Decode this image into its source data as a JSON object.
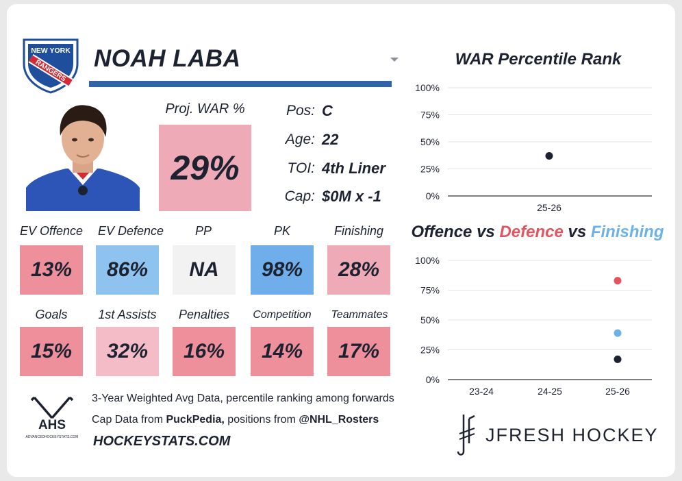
{
  "player": {
    "team_logo_text_top": "NEW YORK",
    "team_logo_text_bottom": "RANGERS",
    "name": "NOAH LABA",
    "proj_war_label": "Proj. WAR %",
    "proj_war_value": "29%",
    "info": [
      {
        "key": "Pos:",
        "value": "C"
      },
      {
        "key": "Age:",
        "value": "22"
      },
      {
        "key": "TOI:",
        "value": "4th Liner"
      },
      {
        "key": "Cap:",
        "value": "$0M x -1"
      }
    ]
  },
  "stats_row1": [
    {
      "label": "EV Offence",
      "value": "13%",
      "color": "#ee8f9c"
    },
    {
      "label": "EV Defence",
      "value": "86%",
      "color": "#8ec2ef"
    },
    {
      "label": "PP",
      "value": "NA",
      "color": "#f2f2f2"
    },
    {
      "label": "PK",
      "value": "98%",
      "color": "#6faeea"
    },
    {
      "label": "Finishing",
      "value": "28%",
      "color": "#efaab7"
    }
  ],
  "stats_row2": [
    {
      "label": "Goals",
      "value": "15%",
      "color": "#ee8f9c"
    },
    {
      "label": "1st Assists",
      "value": "32%",
      "color": "#f3bcc6"
    },
    {
      "label": "Penalties",
      "value": "16%",
      "color": "#ee8f9c"
    },
    {
      "label": "Competition",
      "value": "14%",
      "color": "#ee8f9c"
    },
    {
      "label": "Teammates",
      "value": "17%",
      "color": "#ee8f9c"
    }
  ],
  "footer": {
    "ahs_text": "AHS",
    "ahs_sub": "ADVANCEDHOCKEYSTATS.COM",
    "line1": "3-Year Weighted Avg Data, percentile ranking among forwards",
    "line2_prefix": "Cap Data from ",
    "line2_bold1": "PuckPedia,",
    "line2_mid": " positions from ",
    "line2_bold2": "@NHL_Rosters",
    "site": "HOCKEYSTATS.COM",
    "brand": "JFRESH HOCKEY"
  },
  "chart_data": [
    {
      "type": "scatter",
      "title": "WAR Percentile Rank",
      "categories": [
        "25-26"
      ],
      "y_ticks": [
        "0%",
        "25%",
        "50%",
        "75%",
        "100%"
      ],
      "ylim": [
        0,
        100
      ],
      "grid": true,
      "series": [
        {
          "values": [
            37
          ],
          "color": "#1d2230"
        }
      ]
    },
    {
      "type": "scatter",
      "title_parts": [
        {
          "text": "Offence",
          "color": "#1d2230"
        },
        {
          "text": " vs ",
          "color": "#1d2230"
        },
        {
          "text": "Defence",
          "color": "#e4535f"
        },
        {
          "text": " vs ",
          "color": "#1d2230"
        },
        {
          "text": "Finishing",
          "color": "#6cb2e8"
        }
      ],
      "categories": [
        "23-24",
        "24-25",
        "25-26"
      ],
      "y_ticks": [
        "0%",
        "25%",
        "50%",
        "75%",
        "100%"
      ],
      "ylim": [
        0,
        100
      ],
      "grid": true,
      "series": [
        {
          "values": [
            null,
            null,
            17
          ],
          "color": "#1d2230"
        },
        {
          "values": [
            null,
            null,
            83
          ],
          "color": "#e4535f"
        },
        {
          "values": [
            null,
            null,
            39
          ],
          "color": "#6cb2e8"
        }
      ]
    }
  ]
}
